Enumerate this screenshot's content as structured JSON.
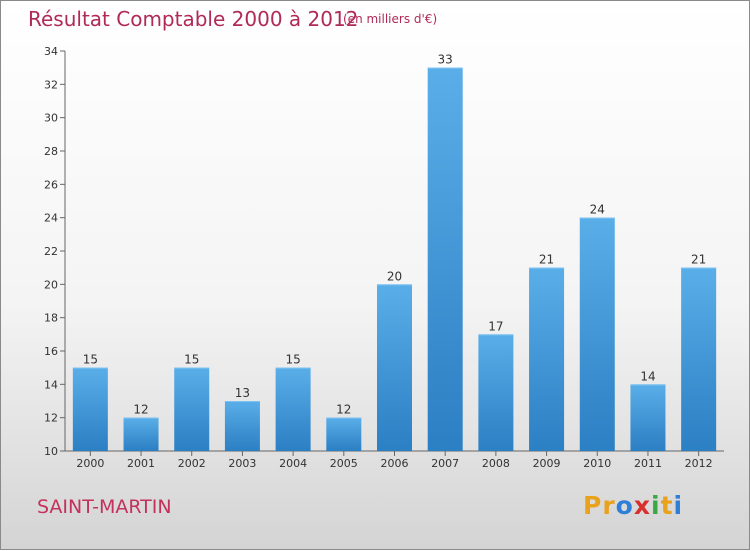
{
  "header": {
    "title": "Résultat Comptable 2000 à 2012",
    "subtitle": "(en milliers d'€)"
  },
  "footer": {
    "commune": "SAINT-MARTIN",
    "logo_letters": [
      "P",
      "r",
      "o",
      "x",
      "i",
      "t",
      "i"
    ],
    "logo_colors": [
      "#e8a21c",
      "#e8a21c",
      "#2f7ed8",
      "#d8302f",
      "#3aa845",
      "#e8a21c",
      "#2f7ed8"
    ]
  },
  "chart_data": {
    "type": "bar",
    "title": "Résultat Comptable 2000 à 2012",
    "subtitle": "(en milliers d'€)",
    "categories": [
      "2000",
      "2001",
      "2002",
      "2003",
      "2004",
      "2005",
      "2006",
      "2007",
      "2008",
      "2009",
      "2010",
      "2011",
      "2012"
    ],
    "values": [
      15,
      12,
      15,
      13,
      15,
      12,
      20,
      33,
      17,
      21,
      24,
      14,
      21
    ],
    "ylim": [
      10,
      34
    ],
    "yticks": [
      10,
      12,
      14,
      16,
      18,
      20,
      22,
      24,
      26,
      28,
      30,
      32,
      34
    ],
    "grid": false,
    "bar_color_top": "#5aaee8",
    "bar_color_bottom": "#2b7fc3"
  }
}
